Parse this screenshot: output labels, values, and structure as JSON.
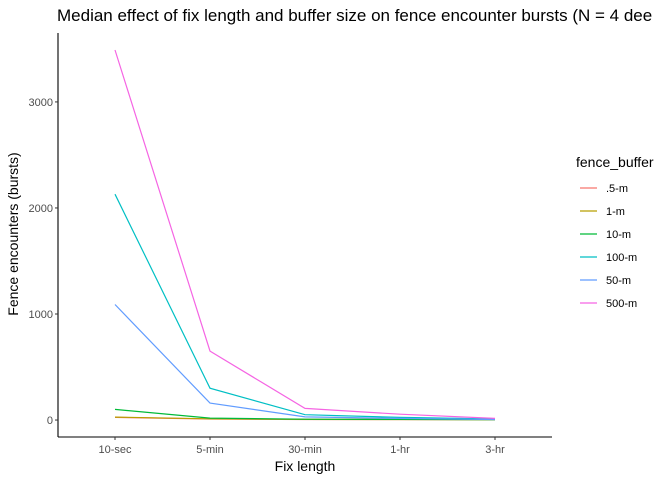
{
  "chart_data": {
    "type": "line",
    "title": "Median effect of fix length and buffer size on fence encounter bursts (N = 4 dee",
    "xlabel": "Fix length",
    "ylabel": "Fence encounters (bursts)",
    "categories": [
      "10-sec",
      "5-min",
      "30-min",
      "1-hr",
      "3-hr"
    ],
    "ylim": [
      -160,
      3650
    ],
    "yticks": [
      0,
      1000,
      2000,
      3000
    ],
    "grid": false,
    "legend": {
      "title": "fence_buffer",
      "position": "right"
    },
    "series": [
      {
        "name": ".5-m",
        "color": "#F8766D",
        "values": [
          25,
          10,
          5,
          5,
          3
        ]
      },
      {
        "name": "1-m",
        "color": "#B79F00",
        "values": [
          28,
          12,
          6,
          5,
          3
        ]
      },
      {
        "name": "10-m",
        "color": "#00BA38",
        "values": [
          100,
          18,
          8,
          6,
          4
        ]
      },
      {
        "name": "100-m",
        "color": "#00BFC4",
        "values": [
          2130,
          300,
          50,
          25,
          10
        ]
      },
      {
        "name": "50-m",
        "color": "#619CFF",
        "values": [
          1090,
          160,
          30,
          15,
          5
        ]
      },
      {
        "name": "500-m",
        "color": "#F564E3",
        "values": [
          3490,
          650,
          110,
          55,
          15
        ]
      }
    ]
  }
}
